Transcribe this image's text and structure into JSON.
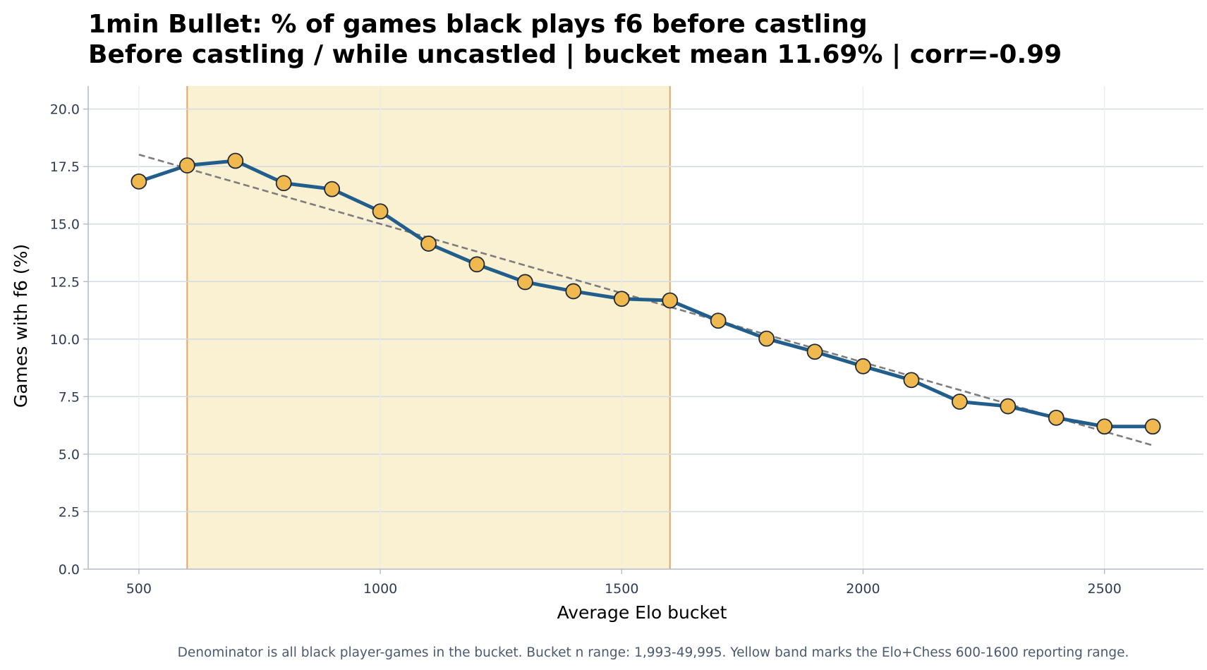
{
  "chart_data": {
    "type": "line",
    "title": "1min Bullet: % of games black plays f6 before castling",
    "subtitle": "Before castling / while uncastled | bucket mean 11.69% | corr=-0.99",
    "xlabel": "Average Elo bucket",
    "ylabel": "Games with f6 (%)",
    "footnote": "Denominator is all black player-games in the bucket. Bucket n range: 1,993-49,995. Yellow band marks the Elo+Chess 600-1600 reporting range.",
    "xlim": [
      395,
      2705
    ],
    "ylim": [
      0,
      21
    ],
    "x_ticks": [
      500,
      1000,
      1500,
      2000,
      2500
    ],
    "x_tick_labels": [
      "500",
      "1000",
      "1500",
      "2000",
      "2500"
    ],
    "y_ticks": [
      0,
      2.5,
      5,
      7.5,
      10,
      12.5,
      15,
      17.5,
      20
    ],
    "y_tick_labels": [
      "0.0",
      "2.5",
      "5.0",
      "7.5",
      "10.0",
      "12.5",
      "15.0",
      "17.5",
      "20.0"
    ],
    "grid": true,
    "highlight_band": {
      "x_start": 600,
      "x_end": 1600,
      "color": "#faf0d2",
      "edge_color": "#e0a868"
    },
    "series": [
      {
        "x": [
          500,
          600,
          700,
          800,
          900,
          1000,
          1100,
          1200,
          1300,
          1400,
          1500,
          1600,
          1700,
          1800,
          1900,
          2000,
          2100,
          2200,
          2300,
          2400,
          2500,
          2600
        ],
        "values": [
          16.85,
          17.55,
          17.75,
          16.78,
          16.52,
          15.55,
          14.15,
          13.25,
          12.48,
          12.08,
          11.75,
          11.68,
          10.8,
          10.02,
          9.45,
          8.82,
          8.22,
          7.28,
          7.08,
          6.58,
          6.2,
          6.2
        ],
        "line_color": "#215e8b",
        "marker_color": "#f0b94f"
      }
    ],
    "trendline": {
      "x": [
        500,
        2600
      ],
      "y": [
        18.02,
        5.38
      ],
      "style": "dashed",
      "color": "#7d7d7d"
    }
  }
}
